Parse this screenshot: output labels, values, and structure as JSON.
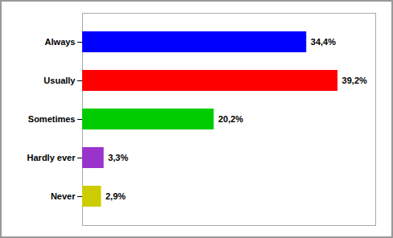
{
  "chart_data": {
    "type": "bar",
    "orientation": "horizontal",
    "categories": [
      "Always",
      "Usually",
      "Sometimes",
      "Hardly ever",
      "Never"
    ],
    "values": [
      34.4,
      39.2,
      20.2,
      3.3,
      2.9
    ],
    "value_labels": [
      "34,4%",
      "39,2%",
      "20,2%",
      "3,3%",
      "2,9%"
    ],
    "colors": [
      "#0000FF",
      "#FF0000",
      "#00CC00",
      "#9933CC",
      "#CCCC00"
    ],
    "xlim": [
      0,
      45
    ],
    "data_labels": true,
    "tick_labels": "y",
    "grid": false
  }
}
